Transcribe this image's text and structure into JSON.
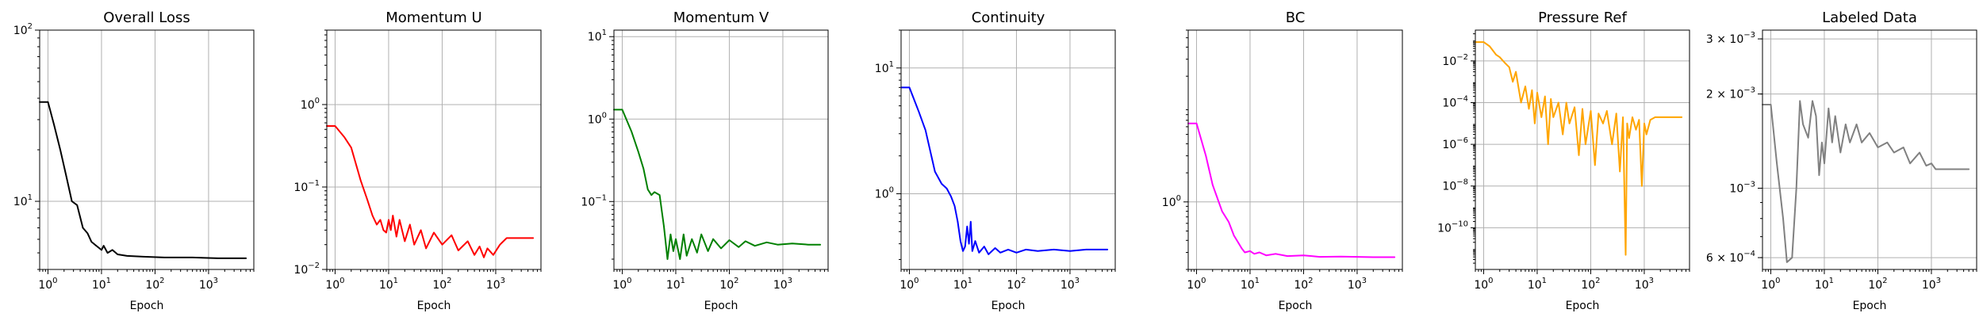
{
  "chart_data": [
    {
      "type": "line",
      "title": "Overall Loss",
      "xlabel": "Epoch",
      "ylabel": "",
      "xscale": "log",
      "yscale": "log",
      "xlim": [
        0.7,
        7000
      ],
      "ylim": [
        4,
        100
      ],
      "color": "#000000",
      "grid": true,
      "xticks": [
        {
          "base": "10",
          "exp": "0",
          "v": 1
        },
        {
          "base": "10",
          "exp": "1",
          "v": 10
        },
        {
          "base": "10",
          "exp": "2",
          "v": 100
        },
        {
          "base": "10",
          "exp": "3",
          "v": 1000
        }
      ],
      "yticks": [
        {
          "base": "10",
          "exp": "1",
          "v": 10
        },
        {
          "base": "10",
          "exp": "2",
          "v": 100
        }
      ],
      "points": [
        [
          0.7,
          38
        ],
        [
          1,
          38
        ],
        [
          1.3,
          28
        ],
        [
          1.7,
          20
        ],
        [
          2.2,
          14
        ],
        [
          2.8,
          10
        ],
        [
          3.5,
          9.5
        ],
        [
          4.5,
          7
        ],
        [
          5.5,
          6.5
        ],
        [
          6.5,
          5.8
        ],
        [
          8,
          5.5
        ],
        [
          10,
          5.2
        ],
        [
          11,
          5.5
        ],
        [
          13,
          5.0
        ],
        [
          16,
          5.2
        ],
        [
          20,
          4.9
        ],
        [
          30,
          4.8
        ],
        [
          60,
          4.75
        ],
        [
          150,
          4.7
        ],
        [
          500,
          4.7
        ],
        [
          1500,
          4.65
        ],
        [
          5000,
          4.65
        ]
      ]
    },
    {
      "type": "line",
      "title": "Momentum U",
      "xlabel": "Epoch",
      "ylabel": "",
      "xscale": "log",
      "yscale": "log",
      "xlim": [
        0.7,
        7000
      ],
      "ylim": [
        0.01,
        8
      ],
      "color": "#ff0000",
      "grid": true,
      "xticks": [
        {
          "base": "10",
          "exp": "0",
          "v": 1
        },
        {
          "base": "10",
          "exp": "1",
          "v": 10
        },
        {
          "base": "10",
          "exp": "2",
          "v": 100
        },
        {
          "base": "10",
          "exp": "3",
          "v": 1000
        }
      ],
      "yticks": [
        {
          "base": "10",
          "exp": "−2",
          "v": 0.01
        },
        {
          "base": "10",
          "exp": "−1",
          "v": 0.1
        },
        {
          "base": "10",
          "exp": "0",
          "v": 1
        }
      ],
      "points": [
        [
          0.7,
          0.55
        ],
        [
          1,
          0.55
        ],
        [
          1.5,
          0.4
        ],
        [
          2,
          0.3
        ],
        [
          3,
          0.12
        ],
        [
          4,
          0.07
        ],
        [
          5,
          0.045
        ],
        [
          6,
          0.035
        ],
        [
          7,
          0.04
        ],
        [
          8,
          0.03
        ],
        [
          9,
          0.028
        ],
        [
          10,
          0.04
        ],
        [
          11,
          0.03
        ],
        [
          12,
          0.045
        ],
        [
          14,
          0.025
        ],
        [
          16,
          0.04
        ],
        [
          20,
          0.022
        ],
        [
          25,
          0.035
        ],
        [
          30,
          0.02
        ],
        [
          40,
          0.03
        ],
        [
          50,
          0.018
        ],
        [
          70,
          0.028
        ],
        [
          100,
          0.02
        ],
        [
          150,
          0.026
        ],
        [
          200,
          0.017
        ],
        [
          300,
          0.022
        ],
        [
          400,
          0.015
        ],
        [
          500,
          0.019
        ],
        [
          600,
          0.014
        ],
        [
          700,
          0.018
        ],
        [
          900,
          0.015
        ],
        [
          1200,
          0.02
        ],
        [
          1600,
          0.024
        ],
        [
          2500,
          0.024
        ],
        [
          5000,
          0.024
        ]
      ]
    },
    {
      "type": "line",
      "title": "Momentum V",
      "xlabel": "Epoch",
      "ylabel": "",
      "xscale": "log",
      "yscale": "log",
      "xlim": [
        0.7,
        7000
      ],
      "ylim": [
        0.015,
        12
      ],
      "color": "#008000",
      "grid": true,
      "xticks": [
        {
          "base": "10",
          "exp": "0",
          "v": 1
        },
        {
          "base": "10",
          "exp": "1",
          "v": 10
        },
        {
          "base": "10",
          "exp": "2",
          "v": 100
        },
        {
          "base": "10",
          "exp": "3",
          "v": 1000
        }
      ],
      "yticks": [
        {
          "base": "10",
          "exp": "−1",
          "v": 0.1
        },
        {
          "base": "10",
          "exp": "0",
          "v": 1
        },
        {
          "base": "10",
          "exp": "1",
          "v": 10
        }
      ],
      "points": [
        [
          0.7,
          1.3
        ],
        [
          1,
          1.3
        ],
        [
          1.5,
          0.7
        ],
        [
          2,
          0.4
        ],
        [
          2.5,
          0.25
        ],
        [
          3,
          0.14
        ],
        [
          3.5,
          0.12
        ],
        [
          4,
          0.13
        ],
        [
          5,
          0.12
        ],
        [
          6,
          0.05
        ],
        [
          7,
          0.02
        ],
        [
          8,
          0.04
        ],
        [
          9,
          0.025
        ],
        [
          10,
          0.035
        ],
        [
          12,
          0.02
        ],
        [
          14,
          0.04
        ],
        [
          16,
          0.022
        ],
        [
          20,
          0.035
        ],
        [
          25,
          0.024
        ],
        [
          30,
          0.04
        ],
        [
          40,
          0.025
        ],
        [
          50,
          0.035
        ],
        [
          70,
          0.027
        ],
        [
          100,
          0.034
        ],
        [
          150,
          0.028
        ],
        [
          200,
          0.033
        ],
        [
          300,
          0.029
        ],
        [
          500,
          0.032
        ],
        [
          800,
          0.03
        ],
        [
          1500,
          0.031
        ],
        [
          3000,
          0.03
        ],
        [
          5000,
          0.03
        ]
      ]
    },
    {
      "type": "line",
      "title": "Continuity",
      "xlabel": "Epoch",
      "ylabel": "",
      "xscale": "log",
      "yscale": "log",
      "xlim": [
        0.7,
        7000
      ],
      "ylim": [
        0.25,
        20
      ],
      "color": "#0000ff",
      "grid": true,
      "xticks": [
        {
          "base": "10",
          "exp": "0",
          "v": 1
        },
        {
          "base": "10",
          "exp": "1",
          "v": 10
        },
        {
          "base": "10",
          "exp": "2",
          "v": 100
        },
        {
          "base": "10",
          "exp": "3",
          "v": 1000
        }
      ],
      "yticks": [
        {
          "base": "10",
          "exp": "0",
          "v": 1
        },
        {
          "base": "10",
          "exp": "1",
          "v": 10
        }
      ],
      "points": [
        [
          0.7,
          7
        ],
        [
          1,
          7
        ],
        [
          1.5,
          4.5
        ],
        [
          2,
          3.2
        ],
        [
          3,
          1.5
        ],
        [
          4,
          1.2
        ],
        [
          5,
          1.1
        ],
        [
          6,
          0.95
        ],
        [
          7,
          0.8
        ],
        [
          8,
          0.6
        ],
        [
          9,
          0.42
        ],
        [
          10,
          0.35
        ],
        [
          11,
          0.38
        ],
        [
          12,
          0.55
        ],
        [
          13,
          0.4
        ],
        [
          14,
          0.6
        ],
        [
          15,
          0.35
        ],
        [
          17,
          0.42
        ],
        [
          20,
          0.34
        ],
        [
          25,
          0.38
        ],
        [
          30,
          0.33
        ],
        [
          40,
          0.37
        ],
        [
          50,
          0.34
        ],
        [
          70,
          0.36
        ],
        [
          100,
          0.34
        ],
        [
          150,
          0.36
        ],
        [
          250,
          0.35
        ],
        [
          500,
          0.36
        ],
        [
          1000,
          0.35
        ],
        [
          2000,
          0.36
        ],
        [
          5000,
          0.36
        ]
      ]
    },
    {
      "type": "line",
      "title": "BC",
      "xlabel": "Epoch",
      "ylabel": "",
      "xscale": "log",
      "yscale": "log",
      "xlim": [
        0.7,
        7000
      ],
      "ylim": [
        0.2,
        60
      ],
      "color": "#ff00ff",
      "grid": true,
      "xticks": [
        {
          "base": "10",
          "exp": "0",
          "v": 1
        },
        {
          "base": "10",
          "exp": "1",
          "v": 10
        },
        {
          "base": "10",
          "exp": "2",
          "v": 100
        },
        {
          "base": "10",
          "exp": "3",
          "v": 1000
        }
      ],
      "yticks": [
        {
          "base": "10",
          "exp": "0",
          "v": 1
        }
      ],
      "points": [
        [
          0.7,
          6.5
        ],
        [
          1,
          6.5
        ],
        [
          1.5,
          3
        ],
        [
          2,
          1.5
        ],
        [
          3,
          0.8
        ],
        [
          4,
          0.62
        ],
        [
          5,
          0.45
        ],
        [
          6,
          0.38
        ],
        [
          7,
          0.33
        ],
        [
          8,
          0.3
        ],
        [
          10,
          0.31
        ],
        [
          12,
          0.29
        ],
        [
          15,
          0.3
        ],
        [
          20,
          0.28
        ],
        [
          30,
          0.29
        ],
        [
          50,
          0.275
        ],
        [
          100,
          0.28
        ],
        [
          200,
          0.27
        ],
        [
          500,
          0.272
        ],
        [
          1000,
          0.27
        ],
        [
          2000,
          0.268
        ],
        [
          5000,
          0.268
        ]
      ]
    },
    {
      "type": "line",
      "title": "Pressure Ref",
      "xlabel": "Epoch",
      "ylabel": "",
      "xscale": "log",
      "yscale": "log",
      "xlim": [
        0.7,
        7000
      ],
      "ylim": [
        1e-12,
        0.3
      ],
      "color": "#ffa500",
      "grid": true,
      "xticks": [
        {
          "base": "10",
          "exp": "0",
          "v": 1
        },
        {
          "base": "10",
          "exp": "1",
          "v": 10
        },
        {
          "base": "10",
          "exp": "2",
          "v": 100
        },
        {
          "base": "10",
          "exp": "3",
          "v": 1000
        }
      ],
      "yticks": [
        {
          "base": "10",
          "exp": "−10",
          "v": 1e-10
        },
        {
          "base": "10",
          "exp": "−8",
          "v": 1e-08
        },
        {
          "base": "10",
          "exp": "−6",
          "v": 1e-06
        },
        {
          "base": "10",
          "exp": "−4",
          "v": 0.0001
        },
        {
          "base": "10",
          "exp": "−2",
          "v": 0.01
        }
      ],
      "points": [
        [
          0.7,
          0.08
        ],
        [
          1,
          0.08
        ],
        [
          1.3,
          0.05
        ],
        [
          1.7,
          0.02
        ],
        [
          2,
          0.015
        ],
        [
          2.5,
          0.008
        ],
        [
          3,
          0.005
        ],
        [
          3.5,
          0.001
        ],
        [
          4,
          0.003
        ],
        [
          5,
          0.0001
        ],
        [
          6,
          0.0006
        ],
        [
          7,
          5e-05
        ],
        [
          8,
          0.0004
        ],
        [
          9,
          1e-05
        ],
        [
          10,
          0.0003
        ],
        [
          12,
          2e-05
        ],
        [
          14,
          0.0002
        ],
        [
          16,
          1e-06
        ],
        [
          18,
          0.00015
        ],
        [
          20,
          2e-05
        ],
        [
          25,
          0.0001
        ],
        [
          30,
          3e-06
        ],
        [
          35,
          0.0001
        ],
        [
          40,
          1e-05
        ],
        [
          50,
          6e-05
        ],
        [
          60,
          3e-07
        ],
        [
          70,
          5e-05
        ],
        [
          80,
          1e-06
        ],
        [
          100,
          4e-05
        ],
        [
          120,
          1e-07
        ],
        [
          140,
          3e-05
        ],
        [
          170,
          1e-05
        ],
        [
          200,
          4e-05
        ],
        [
          250,
          1e-06
        ],
        [
          300,
          3e-05
        ],
        [
          350,
          5e-08
        ],
        [
          400,
          2e-05
        ],
        [
          450,
          5e-12
        ],
        [
          480,
          1e-05
        ],
        [
          520,
          2e-06
        ],
        [
          600,
          2e-05
        ],
        [
          700,
          5e-06
        ],
        [
          800,
          1.5e-05
        ],
        [
          900,
          1e-08
        ],
        [
          1000,
          1e-05
        ],
        [
          1100,
          3e-06
        ],
        [
          1300,
          1.5e-05
        ],
        [
          1600,
          2e-05
        ],
        [
          2000,
          2e-05
        ],
        [
          3000,
          2e-05
        ],
        [
          5000,
          2e-05
        ]
      ]
    },
    {
      "type": "line",
      "title": "Labeled Data",
      "xlabel": "Epoch",
      "ylabel": "",
      "xscale": "log",
      "yscale": "log",
      "xlim": [
        0.7,
        7000
      ],
      "ylim": [
        0.00055,
        0.0032
      ],
      "color": "#808080",
      "grid": true,
      "xticks": [
        {
          "base": "10",
          "exp": "0",
          "v": 1
        },
        {
          "base": "10",
          "exp": "1",
          "v": 10
        },
        {
          "base": "10",
          "exp": "2",
          "v": 100
        },
        {
          "base": "10",
          "exp": "3",
          "v": 1000
        }
      ],
      "yticks": [
        {
          "mant": "6 × ",
          "base": "10",
          "exp": "−4",
          "v": 0.0006
        },
        {
          "mant": "",
          "base": "10",
          "exp": "−3",
          "v": 0.001
        },
        {
          "mant": "2 × ",
          "base": "10",
          "exp": "−3",
          "v": 0.002
        },
        {
          "mant": "3 × ",
          "base": "10",
          "exp": "−3",
          "v": 0.003
        }
      ],
      "points": [
        [
          0.7,
          0.00185
        ],
        [
          1,
          0.00185
        ],
        [
          1.3,
          0.0012
        ],
        [
          1.7,
          0.0008
        ],
        [
          2,
          0.00058
        ],
        [
          2.5,
          0.0006
        ],
        [
          3,
          0.001
        ],
        [
          3.5,
          0.0019
        ],
        [
          4,
          0.0016
        ],
        [
          5,
          0.00145
        ],
        [
          6,
          0.0019
        ],
        [
          7,
          0.0017
        ],
        [
          8,
          0.0011
        ],
        [
          9,
          0.0014
        ],
        [
          10,
          0.0012
        ],
        [
          12,
          0.0018
        ],
        [
          14,
          0.0014
        ],
        [
          16,
          0.0017
        ],
        [
          20,
          0.0013
        ],
        [
          25,
          0.0016
        ],
        [
          30,
          0.0014
        ],
        [
          40,
          0.0016
        ],
        [
          50,
          0.0014
        ],
        [
          70,
          0.0015
        ],
        [
          100,
          0.00135
        ],
        [
          150,
          0.0014
        ],
        [
          200,
          0.0013
        ],
        [
          300,
          0.00135
        ],
        [
          400,
          0.0012
        ],
        [
          600,
          0.0013
        ],
        [
          800,
          0.00118
        ],
        [
          1000,
          0.0012
        ],
        [
          1200,
          0.00115
        ],
        [
          2000,
          0.00115
        ],
        [
          5000,
          0.00115
        ]
      ]
    }
  ]
}
